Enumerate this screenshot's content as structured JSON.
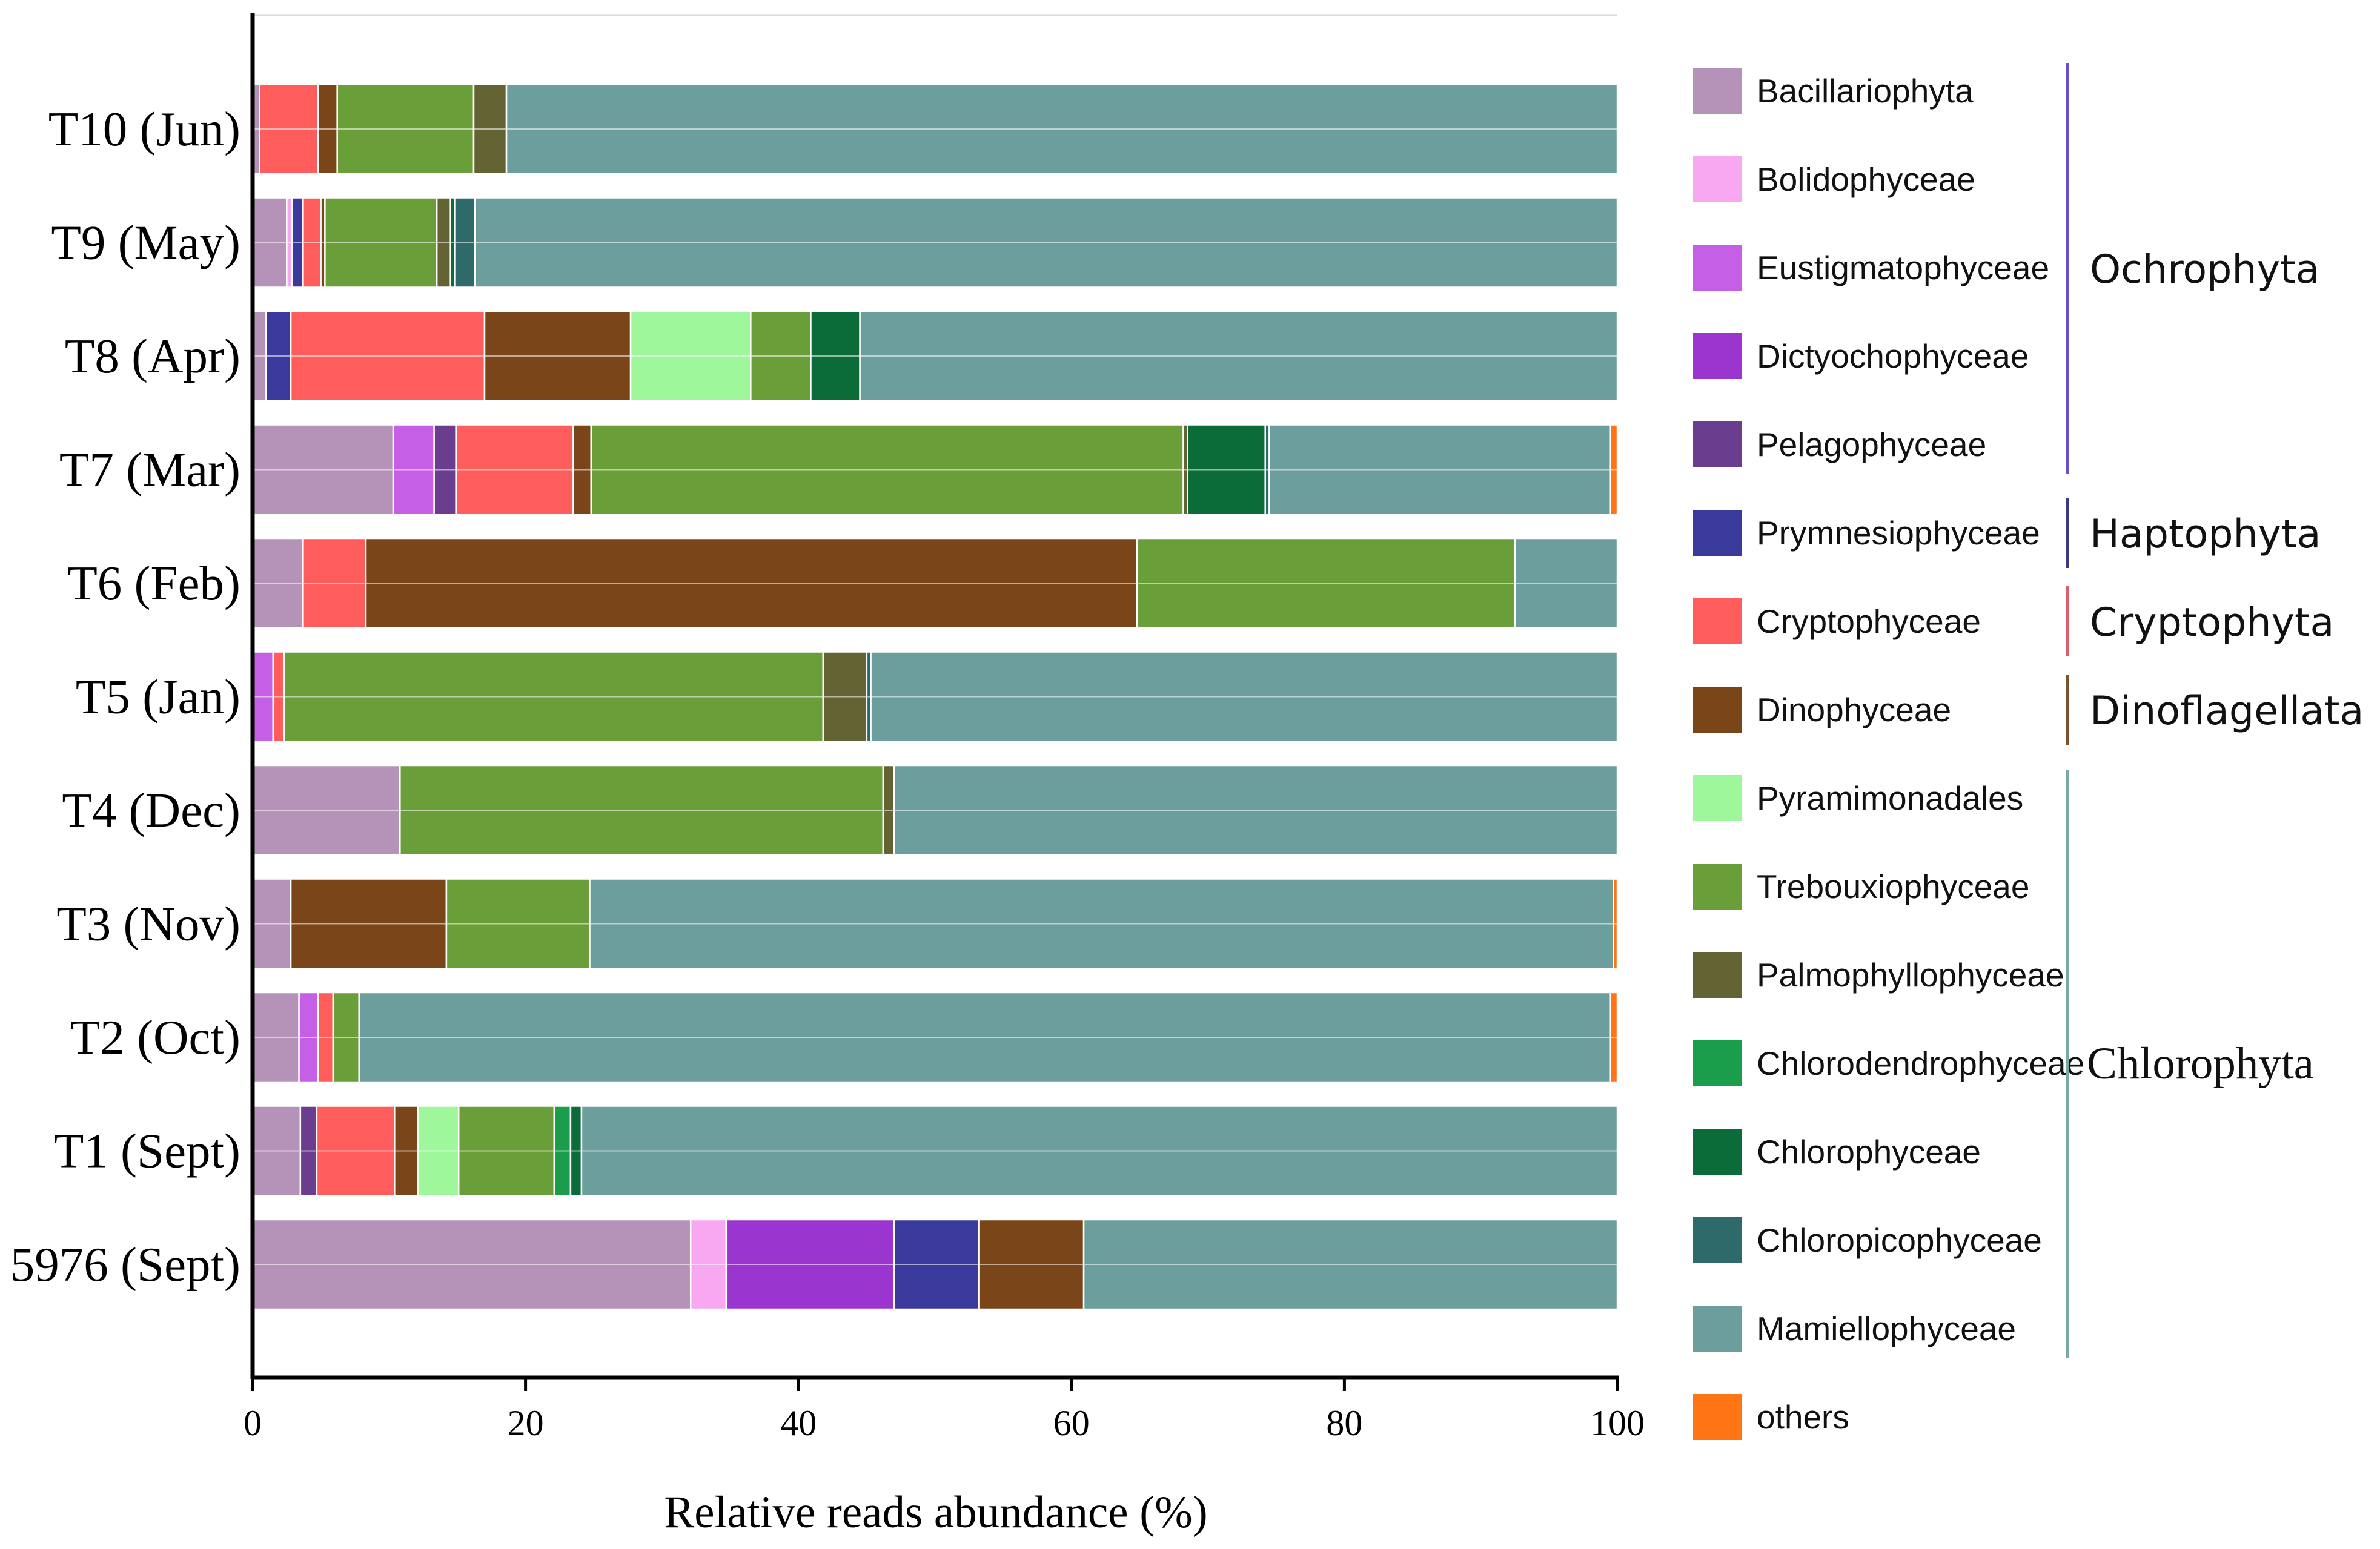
{
  "chart_data": {
    "type": "bar",
    "orientation": "horizontal",
    "stacked": true,
    "xlabel": "Relative reads abundance (%)",
    "xlim": [
      0,
      100
    ],
    "xticks": [
      0,
      20,
      40,
      60,
      80,
      100
    ],
    "samples": [
      "T10 (Jun)",
      "T9 (May)",
      "T8 (Apr)",
      "T7 (Mar)",
      "T6 (Feb)",
      "T5 (Jan)",
      "T4 (Dec)",
      "T3 (Nov)",
      "T2 (Oct)",
      "T1 (Sept)",
      "5976 (Sept)"
    ],
    "series": [
      {
        "name": "Bacillariophyta",
        "color": "#b593b9",
        "values": [
          0.5,
          2.5,
          1.0,
          10.3,
          3.7,
          0,
          10.8,
          2.8,
          3.4,
          3.5,
          32.1
        ]
      },
      {
        "name": "Bolidophyceae",
        "color": "#f8a8f0",
        "values": [
          0,
          0.4,
          0,
          0,
          0,
          0,
          0,
          0,
          0,
          0,
          2.6
        ]
      },
      {
        "name": "Eustigmatophyceae",
        "color": "#c45fe6",
        "values": [
          0,
          0,
          0,
          3.0,
          0,
          1.5,
          0,
          0,
          1.4,
          0,
          0
        ]
      },
      {
        "name": "Dictyochophyceae",
        "color": "#9a35cf",
        "values": [
          0,
          0,
          0,
          0,
          0,
          0,
          0,
          0,
          0,
          0,
          12.3
        ]
      },
      {
        "name": "Pelagophyceae",
        "color": "#6a3d8f",
        "values": [
          0,
          0,
          0,
          1.6,
          0,
          0,
          0,
          0,
          0,
          1.2,
          0
        ]
      },
      {
        "name": "Prymnesiophyceae",
        "color": "#3a3a9c",
        "values": [
          0,
          0.8,
          1.8,
          0,
          0,
          0,
          0,
          0,
          0,
          0,
          6.2
        ]
      },
      {
        "name": "Cryptophyceae",
        "color": "#ff5c5c",
        "values": [
          4.3,
          1.3,
          14.2,
          8.6,
          4.6,
          0.8,
          0,
          0,
          1.1,
          5.7,
          0
        ]
      },
      {
        "name": "Dinophyceae",
        "color": "#7a4519",
        "values": [
          1.4,
          0.3,
          10.7,
          1.3,
          56.5,
          0,
          0,
          11.4,
          0,
          1.7,
          7.7
        ]
      },
      {
        "name": "Pyramimonadales",
        "color": "#9ef79b",
        "values": [
          0,
          0,
          8.8,
          0,
          0,
          0,
          0,
          0,
          0,
          3.0,
          0
        ]
      },
      {
        "name": "Trebouxiophyceae",
        "color": "#6a9e38",
        "values": [
          10.0,
          8.2,
          4.4,
          43.4,
          27.7,
          39.5,
          35.4,
          10.5,
          1.9,
          7.0,
          0
        ]
      },
      {
        "name": "Palmophyllophyceae",
        "color": "#646333",
        "values": [
          2.4,
          1.0,
          0,
          0.3,
          0,
          3.2,
          0.8,
          0,
          0,
          0,
          0
        ]
      },
      {
        "name": "Chlorodendrophyceae",
        "color": "#1a9e4c",
        "values": [
          0,
          0,
          0,
          0,
          0,
          0,
          0,
          0,
          0,
          1.2,
          0
        ]
      },
      {
        "name": "Chlorophyceae",
        "color": "#0b6b39",
        "values": [
          0,
          0.3,
          3.6,
          5.7,
          0,
          0,
          0,
          0,
          0,
          0.8,
          0
        ]
      },
      {
        "name": "Chloropicophyceae",
        "color": "#2f6a6a",
        "values": [
          0,
          1.5,
          0,
          0.3,
          0,
          0.3,
          0,
          0,
          0,
          0,
          0
        ]
      },
      {
        "name": "Mamiellophyceae",
        "color": "#6b9e9c",
        "values": [
          81.4,
          83.7,
          55.5,
          25.0,
          7.5,
          54.7,
          53.0,
          75.0,
          91.7,
          75.9,
          39.1
        ]
      },
      {
        "name": "others",
        "color": "#ff7415",
        "values": [
          0,
          0,
          0,
          0.5,
          0,
          0,
          0,
          0.3,
          0.5,
          0,
          0
        ]
      }
    ],
    "groups": [
      {
        "name": "Ochrophyta",
        "color": "#6a4fc9",
        "members": [
          "Bacillariophyta",
          "Bolidophyceae",
          "Eustigmatophyceae",
          "Dictyochophyceae",
          "Pelagophyceae"
        ]
      },
      {
        "name": "Haptophyta",
        "color": "#3a3a7c",
        "members": [
          "Prymnesiophyceae"
        ]
      },
      {
        "name": "Cryptophyta",
        "color": "#d9606a",
        "members": [
          "Cryptophyceae"
        ]
      },
      {
        "name": "Dinoflagellata",
        "color": "#7a5230",
        "members": [
          "Dinophyceae"
        ]
      },
      {
        "name": "Chlorophyta",
        "color": "#7aa8a5",
        "members": [
          "Pyramimonadales",
          "Trebouxiophyceae",
          "Palmophyllophyceae",
          "Chlorodendrophyceae",
          "Chlorophyceae",
          "Chloropicophyceae",
          "Mamiellophyceae"
        ]
      }
    ]
  }
}
